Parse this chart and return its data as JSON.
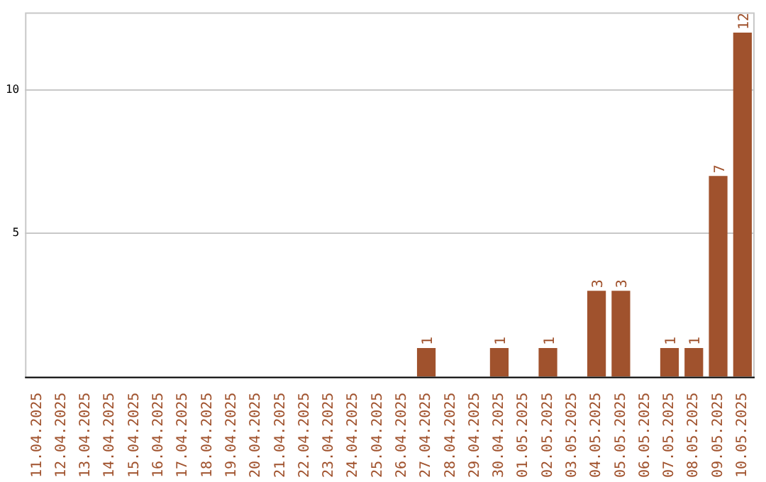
{
  "chart_data": {
    "type": "bar",
    "categories": [
      "11.04.2025",
      "12.04.2025",
      "13.04.2025",
      "14.04.2025",
      "15.04.2025",
      "16.04.2025",
      "17.04.2025",
      "18.04.2025",
      "19.04.2025",
      "20.04.2025",
      "21.04.2025",
      "22.04.2025",
      "23.04.2025",
      "24.04.2025",
      "25.04.2025",
      "26.04.2025",
      "27.04.2025",
      "28.04.2025",
      "29.04.2025",
      "30.04.2025",
      "01.05.2025",
      "02.05.2025",
      "03.05.2025",
      "04.05.2025",
      "05.05.2025",
      "06.05.2025",
      "07.05.2025",
      "08.05.2025",
      "09.05.2025",
      "10.05.2025"
    ],
    "values": [
      0,
      0,
      0,
      0,
      0,
      0,
      0,
      0,
      0,
      0,
      0,
      0,
      0,
      0,
      0,
      0,
      1,
      0,
      0,
      1,
      0,
      1,
      0,
      3,
      3,
      0,
      1,
      1,
      7,
      12
    ],
    "value_labels": [
      null,
      null,
      null,
      null,
      null,
      null,
      null,
      null,
      null,
      null,
      null,
      null,
      null,
      null,
      null,
      null,
      "1",
      null,
      null,
      "1",
      null,
      "1",
      null,
      "3",
      "3",
      null,
      "1",
      "1",
      "7",
      "12"
    ],
    "color": "#a0522d",
    "ylim": [
      0,
      12.7
    ],
    "yticks": [
      5,
      10
    ],
    "grid": "y",
    "legend": false
  }
}
